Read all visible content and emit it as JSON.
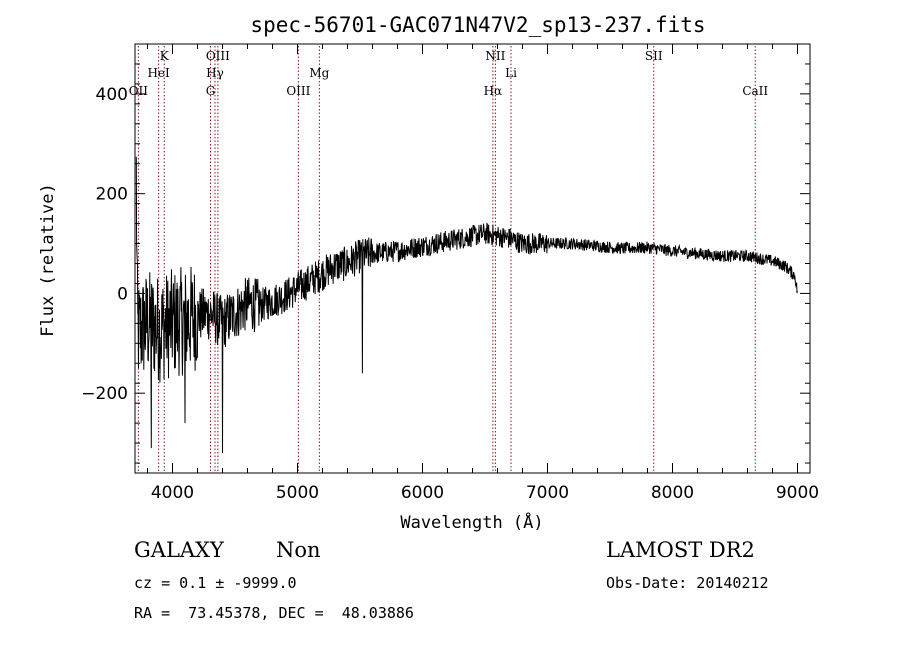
{
  "chart_data": {
    "type": "line",
    "title": "spec-56701-GAC071N47V2_sp13-237.fits",
    "xlabel": "Wavelength (Å)",
    "ylabel": "Flux (relative)",
    "xlim": [
      3700,
      9100
    ],
    "ylim": [
      -360,
      500
    ],
    "xticks": [
      4000,
      5000,
      6000,
      7000,
      8000,
      9000
    ],
    "yticks": [
      -200,
      0,
      200,
      400
    ],
    "ytick_labels": [
      "−200",
      "0",
      "200",
      "400"
    ],
    "grid": false,
    "spectrum_control_points": [
      [
        3710,
        240
      ],
      [
        3720,
        -80
      ],
      [
        3800,
        -60
      ],
      [
        3900,
        -70
      ],
      [
        4000,
        -60
      ],
      [
        4100,
        -55
      ],
      [
        4200,
        -45
      ],
      [
        4300,
        -40
      ],
      [
        4400,
        -60
      ],
      [
        4500,
        -40
      ],
      [
        4600,
        -20
      ],
      [
        4700,
        -25
      ],
      [
        4800,
        -15
      ],
      [
        4900,
        -5
      ],
      [
        5000,
        10
      ],
      [
        5100,
        25
      ],
      [
        5200,
        40
      ],
      [
        5300,
        55
      ],
      [
        5400,
        60
      ],
      [
        5500,
        75
      ],
      [
        5600,
        80
      ],
      [
        5800,
        85
      ],
      [
        6000,
        95
      ],
      [
        6200,
        105
      ],
      [
        6400,
        115
      ],
      [
        6500,
        120
      ],
      [
        6600,
        115
      ],
      [
        6700,
        110
      ],
      [
        6800,
        100
      ],
      [
        7000,
        100
      ],
      [
        7200,
        100
      ],
      [
        7400,
        95
      ],
      [
        7600,
        90
      ],
      [
        7800,
        92
      ],
      [
        8000,
        85
      ],
      [
        8200,
        80
      ],
      [
        8400,
        75
      ],
      [
        8600,
        75
      ],
      [
        8800,
        65
      ],
      [
        8900,
        55
      ],
      [
        8980,
        35
      ],
      [
        9000,
        0
      ]
    ],
    "absorption_spikes": [
      {
        "x": 5520,
        "y": -160
      },
      {
        "x": 4400,
        "y": -320
      },
      {
        "x": 3830,
        "y": -310
      },
      {
        "x": 4100,
        "y": -260
      }
    ],
    "spectral_lines": [
      {
        "label": "OII",
        "x": 3727,
        "row": 3
      },
      {
        "label": "K",
        "x": 3934,
        "row": 1
      },
      {
        "label": "HeI",
        "x": 3889,
        "row": 2
      },
      {
        "label": "OIII",
        "x": 4363,
        "row": 1
      },
      {
        "label": "Hγ",
        "x": 4340,
        "row": 2
      },
      {
        "label": "G",
        "x": 4304,
        "row": 3
      },
      {
        "label": "OIII",
        "x": 5007,
        "row": 3
      },
      {
        "label": "Mg",
        "x": 5175,
        "row": 2
      },
      {
        "label": "NII",
        "x": 6583,
        "row": 1
      },
      {
        "label": "Li",
        "x": 6708,
        "row": 2
      },
      {
        "label": "Hα",
        "x": 6563,
        "row": 3
      },
      {
        "label": "SII",
        "x": 7850,
        "row": 1
      },
      {
        "label": "CaII",
        "x": 8662,
        "row": 3
      }
    ]
  },
  "info": {
    "class_label": "GALAXY",
    "subclass_label": "Non",
    "survey_label": "LAMOST DR2",
    "cz_text": "cz = 0.1 ± -9999.0",
    "obs_date_text": "Obs-Date: 20140212",
    "coords_text": "RA =  73.45378, DEC =  48.03886"
  },
  "colors": {
    "spectrum": "#000000",
    "line_markers": "#8b1a1a"
  }
}
